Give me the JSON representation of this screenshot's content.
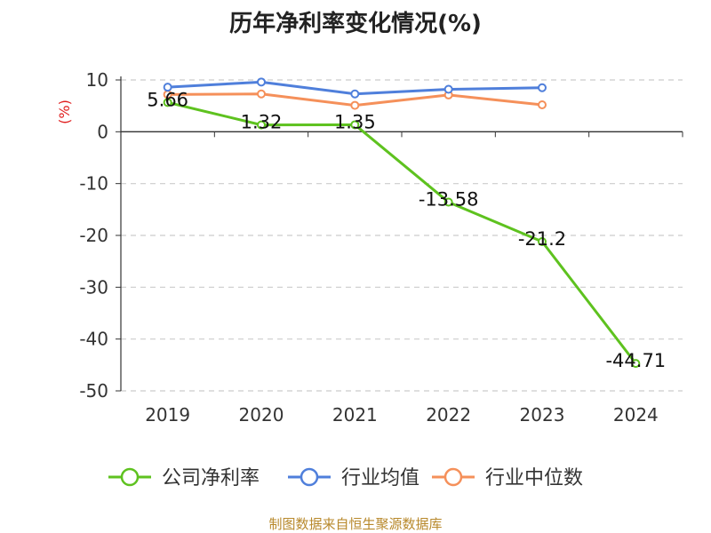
{
  "chart_data": {
    "type": "line",
    "title": "历年净利率变化情况(%)",
    "ylabel": "(%)",
    "categories": [
      "2019",
      "2020",
      "2021",
      "2022",
      "2023",
      "2024"
    ],
    "ylim": [
      -50,
      10
    ],
    "yticks": [
      10,
      0,
      -10,
      -20,
      -30,
      -40,
      -50
    ],
    "grid": true,
    "legend_position": "bottom",
    "series": [
      {
        "name": "公司净利率",
        "color": "#5ec21f",
        "show_labels": true,
        "values": [
          5.66,
          1.32,
          1.35,
          -13.58,
          -21.2,
          -44.71
        ]
      },
      {
        "name": "行业均值",
        "color": "#4f7fdb",
        "show_labels": false,
        "values": [
          8.6,
          9.6,
          7.3,
          8.2,
          8.5,
          null
        ]
      },
      {
        "name": "行业中位数",
        "color": "#f5905a",
        "show_labels": false,
        "values": [
          7.2,
          7.3,
          5.1,
          7.1,
          5.2,
          null
        ]
      }
    ]
  },
  "footer": "制图数据来自恒生聚源数据库"
}
